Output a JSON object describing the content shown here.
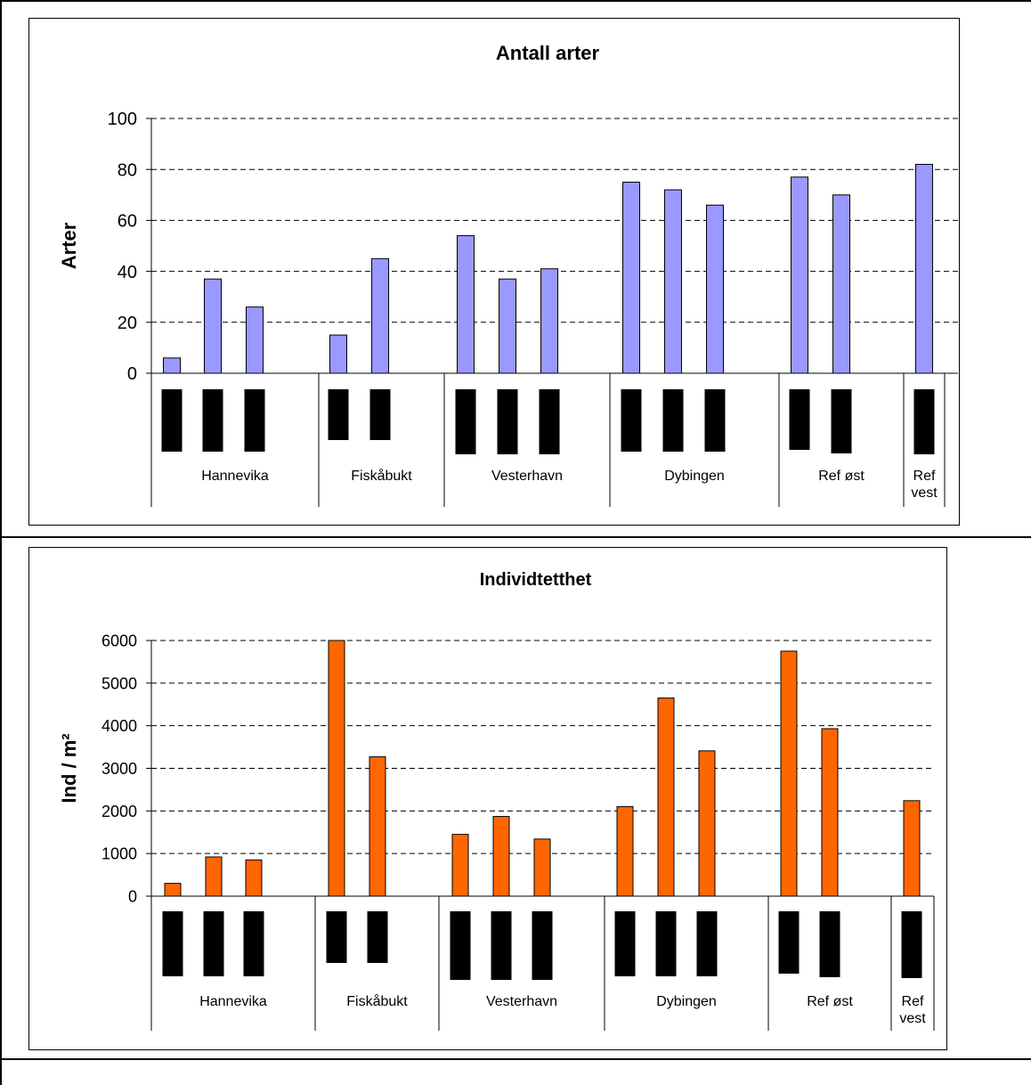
{
  "chart_data": [
    {
      "type": "bar",
      "title": "Antall arter",
      "ylabel": "Arter",
      "xlabel": "",
      "ylim": [
        0,
        100
      ],
      "yticks": [
        "0",
        "20",
        "40",
        "60",
        "80",
        "100"
      ],
      "grid": true,
      "bar_color": "#9999ff",
      "groups": [
        {
          "label": "Hannevika",
          "values": [
            6,
            37,
            26
          ]
        },
        {
          "label": "Fiskåbukt",
          "values": [
            15,
            45
          ]
        },
        {
          "label": "Vesterhavn",
          "values": [
            54,
            37,
            41
          ]
        },
        {
          "label": "Dybingen",
          "values": [
            75,
            72,
            66
          ]
        },
        {
          "label": "Ref øst",
          "values": [
            77,
            70
          ]
        },
        {
          "label": "Ref vest",
          "values": [
            82
          ]
        }
      ]
    },
    {
      "type": "bar",
      "title": "Individtetthet",
      "ylabel": "Ind / m²",
      "xlabel": "",
      "ylim": [
        0,
        6000
      ],
      "yticks": [
        "0",
        "1000",
        "2000",
        "3000",
        "4000",
        "5000",
        "6000"
      ],
      "grid": true,
      "bar_color": "#ff6600",
      "groups": [
        {
          "label": "Hannevika",
          "values": [
            300,
            920,
            850
          ]
        },
        {
          "label": "Fiskåbukt",
          "values": [
            6100,
            3270
          ]
        },
        {
          "label": "Vesterhavn",
          "values": [
            1450,
            1870,
            1340
          ]
        },
        {
          "label": "Dybingen",
          "values": [
            2100,
            4650,
            3410
          ]
        },
        {
          "label": "Ref øst",
          "values": [
            5750,
            3930
          ]
        },
        {
          "label": "Ref vest",
          "values": [
            2240
          ]
        }
      ]
    }
  ]
}
